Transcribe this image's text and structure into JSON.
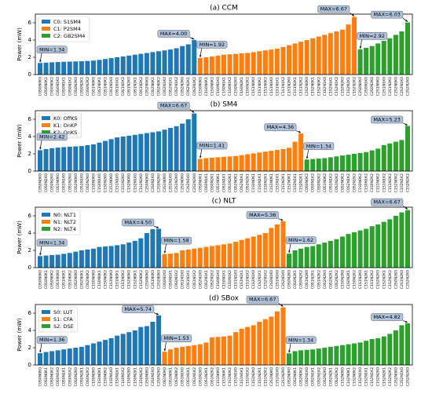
{
  "chart_data": [
    {
      "type": "bar",
      "title": "(a) CCM",
      "ylabel": "Power (mW)",
      "ylim": [
        0,
        7
      ],
      "yticks": [
        0,
        2,
        4,
        6
      ],
      "legend": "upper left",
      "series": [
        {
          "name": "C0: S1SM4",
          "color": "#1f77b4",
          "min_label": "MIN=1.34",
          "max_label": "MAX=4.00",
          "categories": [
            "C0S0N0K0",
            "C0S0N0K1",
            "C0S0N0K2",
            "C0S0N1K0",
            "C0S0N1K1",
            "C0S0N1K2",
            "C0S0N2K0",
            "C0S0N2K1",
            "C0S0N2K2",
            "C0S1N0K0",
            "C0S1N0K1",
            "C0S1N0K2",
            "C0S1N1K0",
            "C0S1N1K1",
            "C0S1N1K2",
            "C0S1N2K0",
            "C0S1N2K1",
            "C0S1N2K2",
            "C0S2N0K0",
            "C0S2N0K1",
            "C0S2N0K2",
            "C0S2N1K0",
            "C0S2N1K1",
            "C0S2N1K2",
            "C0S2N2K0",
            "C0S2N2K1",
            "C0S2N2K2"
          ],
          "values": [
            1.34,
            1.38,
            1.42,
            1.45,
            1.48,
            1.5,
            1.52,
            1.55,
            1.58,
            1.62,
            1.7,
            1.8,
            1.9,
            2.0,
            2.1,
            2.2,
            2.3,
            2.4,
            2.5,
            2.6,
            2.7,
            2.8,
            2.9,
            3.05,
            3.3,
            3.5,
            4.0
          ]
        },
        {
          "name": "C1: P2SM4",
          "color": "#ff7f0e",
          "min_label": "MIN=1.92",
          "max_label": "MAX=6.67",
          "categories": [
            "C1S0N0K0",
            "C1S0N0K1",
            "C1S0N0K2",
            "C1S0N1K0",
            "C1S0N1K1",
            "C1S0N1K2",
            "C1S0N2K0",
            "C1S0N2K1",
            "C1S0N2K2",
            "C1S1N0K0",
            "C1S1N0K1",
            "C1S1N0K2",
            "C1S1N1K0",
            "C1S1N1K1",
            "C1S1N1K2",
            "C1S1N2K0",
            "C1S1N2K1",
            "C1S1N2K2",
            "C1S2N0K0",
            "C1S2N0K1",
            "C1S2N0K2",
            "C1S2N1K0",
            "C1S2N1K1",
            "C1S2N1K2",
            "C1S2N2K0",
            "C1S2N2K1",
            "C1S2N2K2"
          ],
          "values": [
            1.92,
            2.0,
            2.1,
            2.2,
            2.3,
            2.35,
            2.4,
            2.45,
            2.5,
            2.6,
            2.7,
            2.8,
            2.9,
            3.0,
            3.2,
            3.4,
            3.6,
            3.8,
            4.0,
            4.2,
            4.4,
            4.6,
            4.8,
            5.0,
            5.2,
            5.8,
            6.67
          ]
        },
        {
          "name": "C2: GB2SM4",
          "color": "#2ca02c",
          "min_label": "MIN=2.92",
          "max_label": "MAX=6.03",
          "categories": [
            "C2S0N0K0",
            "C2S0N1K0",
            "C2S0N2K0",
            "C2S1N0K0",
            "C2S1N1K0",
            "C2S1N2K0",
            "C2S2N0K0",
            "C2S2N1K0",
            "C2S2N2K0"
          ],
          "values": [
            2.92,
            3.1,
            3.3,
            3.6,
            3.9,
            4.2,
            4.6,
            5.0,
            6.03
          ]
        }
      ]
    },
    {
      "type": "bar",
      "title": "(b) SM4",
      "ylabel": "Power (mW)",
      "ylim": [
        0,
        7
      ],
      "yticks": [
        0,
        2,
        4,
        6
      ],
      "legend": "upper left",
      "series": [
        {
          "name": "K0: OffKS",
          "color": "#1f77b4",
          "min_label": "MIN=2.42",
          "max_label": "MAX=6.67",
          "categories": [
            "C0S0N0K0",
            "C0S0N1K0",
            "C0S0N2K0",
            "C0S1N0K0",
            "C0S1N1K0",
            "C0S1N2K0",
            "C0S2N0K0",
            "C0S2N1K0",
            "C0S2N2K0",
            "C1S0N0K0",
            "C1S0N1K0",
            "C1S0N2K0",
            "C1S1N0K0",
            "C1S1N1K0",
            "C1S1N2K0",
            "C1S2N0K0",
            "C1S2N1K0",
            "C1S2N2K0",
            "C2S0N0K0",
            "C2S0N1K0",
            "C2S0N2K0",
            "C2S1N0K0",
            "C2S1N1K0",
            "C2S1N2K0",
            "C2S2N0K0",
            "C2S2N1K0",
            "C2S2N2K0"
          ],
          "values": [
            2.42,
            2.55,
            2.65,
            2.72,
            2.78,
            2.82,
            2.86,
            2.9,
            3.0,
            3.1,
            3.3,
            3.5,
            3.7,
            3.9,
            4.0,
            4.1,
            4.2,
            4.3,
            4.4,
            4.5,
            4.6,
            4.8,
            5.0,
            5.2,
            5.5,
            6.0,
            6.67
          ]
        },
        {
          "name": "K1: OnKP",
          "color": "#ff7f0e",
          "min_label": "MIN=1.41",
          "max_label": "MAX=4.36",
          "categories": [
            "C0S0N0K1",
            "C0S0N1K1",
            "C0S0N2K1",
            "C0S1N0K1",
            "C0S1N1K1",
            "C0S1N2K1",
            "C0S2N0K1",
            "C0S2N1K1",
            "C0S2N2K1",
            "C1S0N0K1",
            "C1S0N1K1",
            "C1S0N2K1",
            "C1S1N0K1",
            "C1S1N1K1",
            "C1S1N2K1",
            "C1S2N0K1",
            "C1S2N1K1",
            "C1S2N2K1"
          ],
          "values": [
            1.41,
            1.5,
            1.55,
            1.6,
            1.65,
            1.7,
            1.75,
            1.85,
            1.95,
            2.05,
            2.15,
            2.25,
            2.35,
            2.45,
            2.55,
            2.7,
            3.4,
            4.36
          ]
        },
        {
          "name": "K2: OnKS",
          "color": "#2ca02c",
          "min_label": "MIN=1.34",
          "max_label": "MAX=5.23",
          "categories": [
            "C0S0N0K2",
            "C0S0N1K2",
            "C0S0N2K2",
            "C0S1N0K2",
            "C0S1N1K2",
            "C0S1N2K2",
            "C0S2N0K2",
            "C0S2N1K2",
            "C0S2N2K2",
            "C1S0N0K2",
            "C1S0N1K2",
            "C1S0N2K2",
            "C1S1N0K2",
            "C1S1N1K2",
            "C1S1N2K2",
            "C1S2N0K2",
            "C1S2N1K2",
            "C1S2N2K2"
          ],
          "values": [
            1.34,
            1.4,
            1.45,
            1.5,
            1.6,
            1.7,
            1.8,
            1.9,
            2.0,
            2.1,
            2.2,
            2.4,
            2.6,
            3.0,
            3.2,
            3.4,
            3.6,
            5.23
          ]
        }
      ]
    },
    {
      "type": "bar",
      "title": "(c) NLT",
      "ylabel": "Power (mW)",
      "ylim": [
        0,
        7
      ],
      "yticks": [
        0,
        2,
        4,
        6
      ],
      "legend": "upper left",
      "series": [
        {
          "name": "N0: NLT1",
          "color": "#1f77b4",
          "min_label": "MIN=1.34",
          "max_label": "MAX=4.50",
          "categories": [
            "C0S0N0K0",
            "C0S0N0K1",
            "C0S0N0K2",
            "C0S1N0K0",
            "C0S1N0K1",
            "C0S1N0K2",
            "C0S2N0K0",
            "C0S2N0K1",
            "C0S2N0K2",
            "C1S0N0K0",
            "C1S0N0K1",
            "C1S0N0K2",
            "C1S1N0K0",
            "C1S1N0K1",
            "C1S1N0K2",
            "C1S2N0K0",
            "C1S2N0K1",
            "C1S2N0K2",
            "C2S0N0K0",
            "C2S1N0K0",
            "C2S2N0K0"
          ],
          "values": [
            1.34,
            1.4,
            1.45,
            1.5,
            1.6,
            1.7,
            1.85,
            2.0,
            2.1,
            2.2,
            2.4,
            2.45,
            2.5,
            2.6,
            2.7,
            2.9,
            3.1,
            3.4,
            4.0,
            4.45,
            4.5
          ]
        },
        {
          "name": "N1: NLT2",
          "color": "#ff7f0e",
          "min_label": "MIN=1.58",
          "max_label": "MAX=5.36",
          "categories": [
            "C0S0N1K0",
            "C0S0N1K1",
            "C0S0N1K2",
            "C0S1N1K0",
            "C0S1N1K1",
            "C0S1N1K2",
            "C0S2N1K0",
            "C0S2N1K1",
            "C0S2N1K2",
            "C1S0N1K0",
            "C1S0N1K1",
            "C1S0N1K2",
            "C1S1N1K0",
            "C1S1N1K1",
            "C1S1N1K2",
            "C1S2N1K0",
            "C1S2N1K1",
            "C1S2N1K2",
            "C2S0N1K0",
            "C2S1N1K0",
            "C2S2N1K0"
          ],
          "values": [
            1.58,
            1.62,
            1.7,
            2.0,
            2.1,
            2.2,
            2.3,
            2.4,
            2.5,
            2.6,
            2.7,
            2.8,
            3.0,
            3.2,
            3.4,
            3.6,
            3.8,
            4.0,
            4.6,
            5.0,
            5.36
          ]
        },
        {
          "name": "N2: NLT4",
          "color": "#2ca02c",
          "min_label": "MIN=1.62",
          "max_label": "MAX=6.67",
          "categories": [
            "C0S0N2K0",
            "C0S0N2K1",
            "C0S0N2K2",
            "C0S1N2K0",
            "C0S1N2K1",
            "C0S1N2K2",
            "C0S2N2K0",
            "C0S2N2K1",
            "C0S2N2K2",
            "C1S0N2K0",
            "C1S0N2K1",
            "C1S0N2K2",
            "C1S1N2K0",
            "C1S1N2K1",
            "C1S1N2K2",
            "C1S2N2K0",
            "C1S2N2K1",
            "C1S2N2K2",
            "C2S0N2K0",
            "C2S1N2K0",
            "C2S2N2K0"
          ],
          "values": [
            1.62,
            2.0,
            2.2,
            2.4,
            2.5,
            2.7,
            2.9,
            3.1,
            3.3,
            3.6,
            3.9,
            4.1,
            4.3,
            4.5,
            4.8,
            5.0,
            5.3,
            5.6,
            6.0,
            6.4,
            6.67
          ]
        }
      ]
    },
    {
      "type": "bar",
      "title": "(d) SBox",
      "ylabel": "Power (mW)",
      "ylim": [
        0,
        7
      ],
      "yticks": [
        0,
        2,
        4,
        6
      ],
      "legend": "upper left",
      "series": [
        {
          "name": "S0: LUT",
          "color": "#1f77b4",
          "min_label": "MIN=1.36",
          "max_label": "MAX=5.74",
          "categories": [
            "C0S0N0K0",
            "C0S0N0K1",
            "C0S0N0K2",
            "C0S0N1K0",
            "C0S0N1K1",
            "C0S0N1K2",
            "C0S0N2K0",
            "C0S0N2K1",
            "C0S0N2K2",
            "C1S0N0K0",
            "C1S0N0K1",
            "C1S0N0K2",
            "C1S0N1K0",
            "C1S0N1K1",
            "C1S0N1K2",
            "C1S0N2K0",
            "C1S0N2K1",
            "C1S0N2K2",
            "C2S0N0K0",
            "C2S0N1K0",
            "C2S0N2K0"
          ],
          "values": [
            1.36,
            1.5,
            1.6,
            1.7,
            1.8,
            1.9,
            2.0,
            2.1,
            2.3,
            2.5,
            2.7,
            2.9,
            3.1,
            3.4,
            3.6,
            3.8,
            4.0,
            4.4,
            4.5,
            5.0,
            5.74
          ]
        },
        {
          "name": "S1: CFA",
          "color": "#ff7f0e",
          "min_label": "MIN=1.53",
          "max_label": "MAX=6.67",
          "categories": [
            "C0S1N0K0",
            "C0S1N0K1",
            "C0S1N0K2",
            "C0S1N1K0",
            "C0S1N1K1",
            "C0S1N1K2",
            "C0S1N2K0",
            "C0S1N2K1",
            "C0S1N2K2",
            "C1S1N0K0",
            "C1S1N0K1",
            "C1S1N0K2",
            "C1S1N1K0",
            "C1S1N1K1",
            "C1S1N1K2",
            "C1S1N2K0",
            "C1S1N2K1",
            "C1S1N2K2",
            "C2S1N0K0",
            "C2S1N1K0",
            "C2S1N2K0"
          ],
          "values": [
            1.53,
            1.8,
            2.0,
            2.1,
            2.2,
            2.3,
            2.4,
            2.6,
            3.2,
            3.25,
            3.3,
            3.4,
            3.8,
            4.2,
            4.4,
            4.6,
            5.0,
            5.3,
            5.6,
            6.2,
            6.67
          ]
        },
        {
          "name": "S2: DSE",
          "color": "#2ca02c",
          "min_label": "MIN=1.34",
          "max_label": "MAX=4.82",
          "categories": [
            "C0S2N0K0",
            "C0S2N0K1",
            "C0S2N0K2",
            "C0S2N1K0",
            "C0S2N1K1",
            "C0S2N1K2",
            "C0S2N2K0",
            "C0S2N2K1",
            "C0S2N2K2",
            "C1S2N0K0",
            "C1S2N0K1",
            "C1S2N0K2",
            "C1S2N1K0",
            "C1S2N1K1",
            "C1S2N1K2",
            "C1S2N2K0",
            "C1S2N2K1",
            "C1S2N2K2",
            "C2S2N0K0",
            "C2S2N1K0",
            "C2S2N2K0"
          ],
          "values": [
            1.34,
            1.6,
            1.7,
            1.75,
            1.8,
            1.9,
            2.0,
            2.1,
            2.2,
            2.3,
            2.4,
            2.5,
            2.6,
            2.8,
            3.0,
            3.1,
            3.3,
            3.6,
            4.0,
            4.6,
            4.82
          ]
        }
      ]
    }
  ]
}
